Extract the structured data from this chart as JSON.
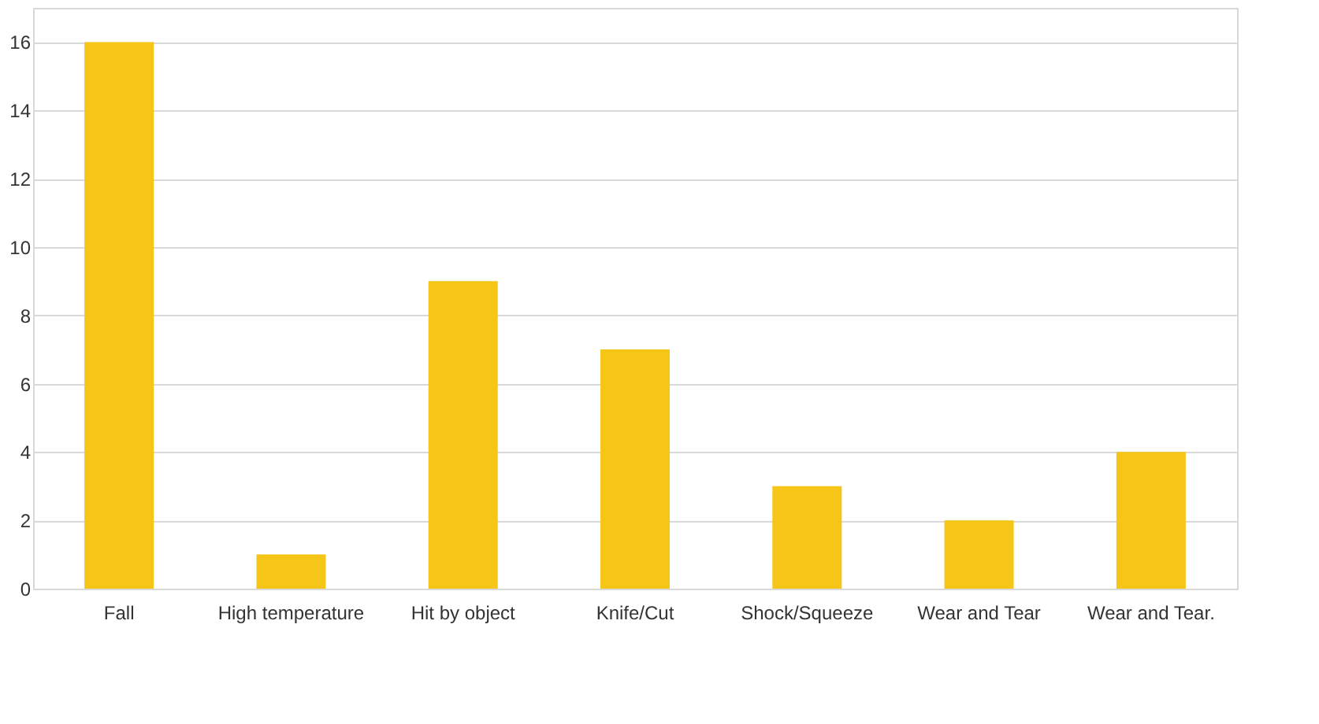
{
  "chart_data": {
    "type": "bar",
    "categories": [
      "Fall",
      "High temperature",
      "Hit by object",
      "Knife/Cut",
      "Shock/Squeeze",
      "Wear and Tear",
      "Wear and Tear."
    ],
    "values": [
      16,
      1,
      9,
      7,
      3,
      2,
      4
    ],
    "color": "#f5c518",
    "ylim": [
      0,
      17
    ],
    "yticks": [
      0,
      2,
      4,
      6,
      8,
      10,
      12,
      14,
      16
    ],
    "grid": "y"
  }
}
